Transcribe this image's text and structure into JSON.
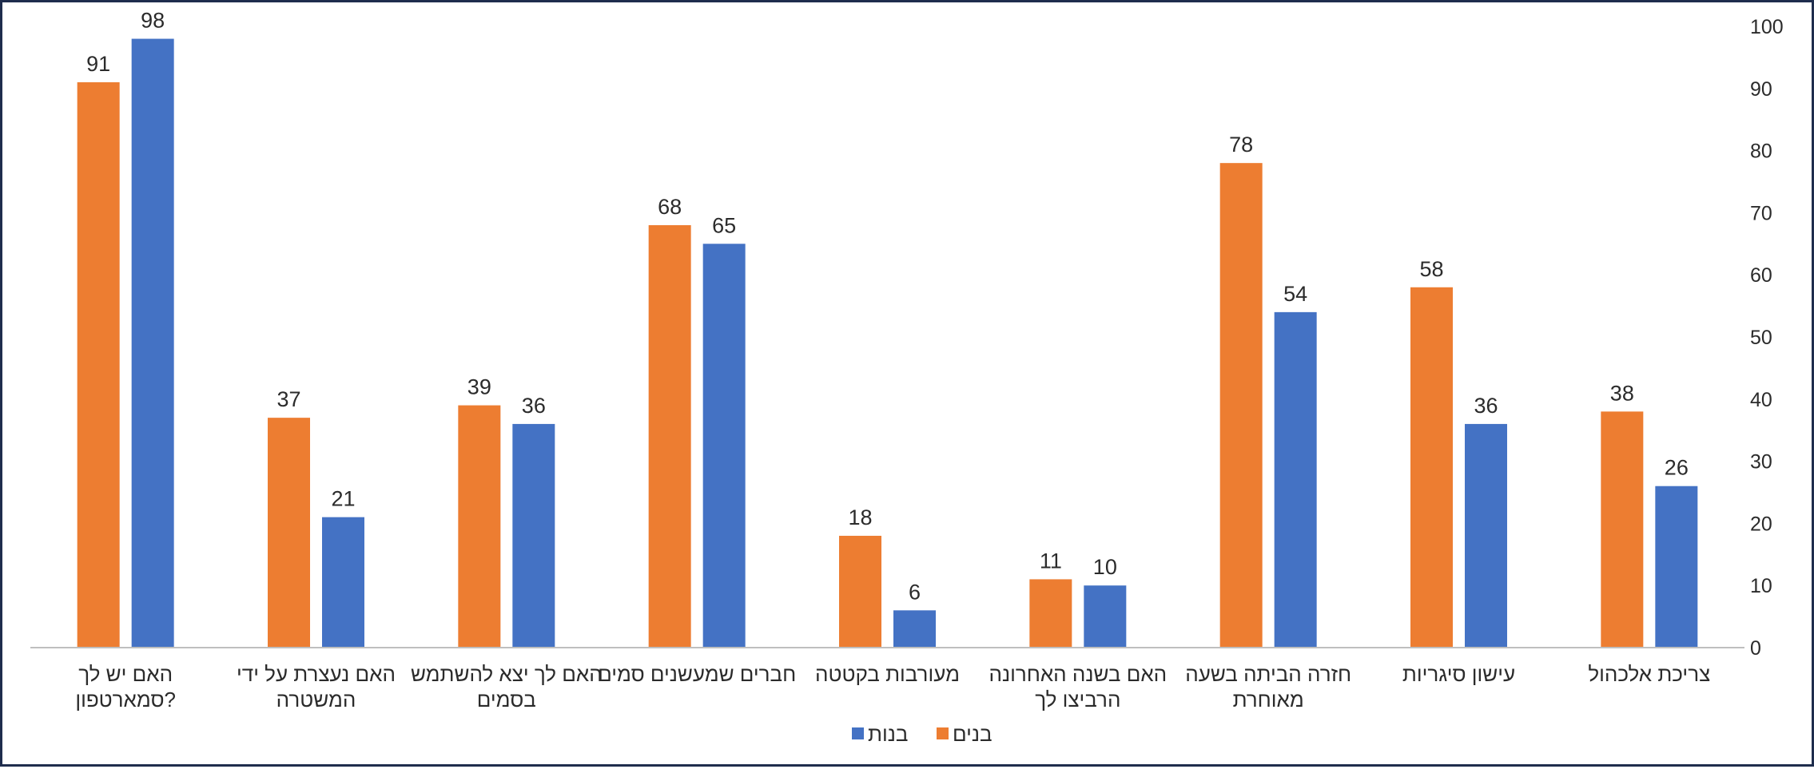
{
  "chart_data": {
    "type": "bar",
    "title": "",
    "xlabel": "",
    "ylabel": "",
    "ylim": [
      0,
      100
    ],
    "yticks": [
      0,
      10,
      20,
      30,
      40,
      50,
      60,
      70,
      80,
      90,
      100
    ],
    "y_axis_side": "right",
    "category_direction": "right-to-left",
    "grid": false,
    "legend_position": "bottom",
    "categories": [
      [
        "צריכת אלכהול"
      ],
      [
        "עישון סיגריות"
      ],
      [
        "חזרה הביתה בשעה",
        "מאוחרת"
      ],
      [
        "האם בשנה האחרונה",
        "הרביצו לך"
      ],
      [
        "מעורבות בקטטה"
      ],
      [
        "חברים שמעשנים סמים"
      ],
      [
        "האם לך יצא להשתמש",
        "בסמים"
      ],
      [
        "האם נעצרת על ידי",
        "המשטרה"
      ],
      [
        "האם יש לך",
        "סמארטפון?"
      ]
    ],
    "series": [
      {
        "name": "בנים",
        "color": "#ed7d31",
        "values": [
          38,
          58,
          78,
          11,
          18,
          68,
          39,
          37,
          91
        ]
      },
      {
        "name": "בנות",
        "color": "#4472c4",
        "values": [
          26,
          36,
          54,
          10,
          6,
          65,
          36,
          21,
          98
        ]
      }
    ]
  }
}
